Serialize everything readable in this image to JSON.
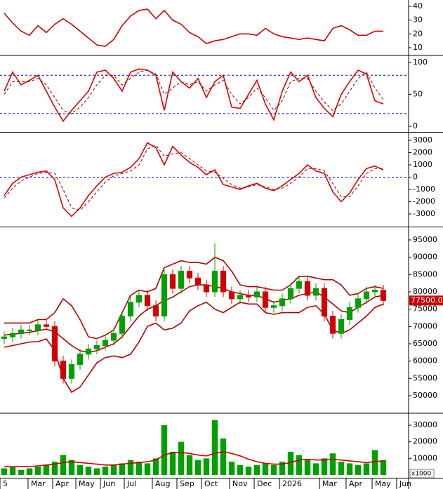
{
  "chart_data": [
    {
      "type": "line",
      "xlim": [
        -0.5,
        48
      ],
      "ylim": [
        4.9,
        44.6
      ],
      "yticks": [
        10,
        20,
        30,
        40
      ],
      "series": [
        {
          "color": "#cc0000",
          "values": [
            35,
            28,
            22,
            19,
            26,
            21,
            27,
            31,
            27,
            22,
            17,
            12,
            11,
            16,
            26,
            33,
            37,
            38,
            31,
            37,
            30,
            27,
            21,
            18,
            13,
            15,
            16,
            18,
            20,
            20,
            19,
            24,
            20,
            18,
            17,
            16,
            17,
            16,
            15,
            24,
            26,
            23,
            19,
            19,
            22,
            22
          ]
        }
      ]
    },
    {
      "type": "line",
      "xlim": [
        -0.5,
        48
      ],
      "ylim": [
        -7.7,
        110
      ],
      "yticks": [
        0,
        50,
        100
      ],
      "levels": [
        20,
        80
      ],
      "level_color": "#0000cc",
      "series": [
        {
          "color": "#dd0000",
          "values": [
            55,
            85,
            65,
            72,
            80,
            55,
            30,
            8,
            25,
            40,
            55,
            85,
            88,
            75,
            55,
            85,
            90,
            88,
            80,
            25,
            85,
            70,
            60,
            75,
            45,
            70,
            80,
            30,
            28,
            50,
            72,
            35,
            10,
            55,
            85,
            70,
            80,
            45,
            28,
            15,
            50,
            70,
            88,
            82,
            40,
            35
          ]
        },
        {
          "color": "#800000",
          "dash": true,
          "values": [
            50,
            70,
            70,
            70,
            75,
            65,
            45,
            25,
            20,
            30,
            45,
            65,
            80,
            80,
            65,
            75,
            85,
            88,
            82,
            50,
            60,
            70,
            65,
            70,
            55,
            65,
            72,
            50,
            35,
            45,
            60,
            45,
            25,
            40,
            70,
            75,
            75,
            55,
            38,
            25,
            35,
            55,
            75,
            85,
            60,
            42
          ]
        }
      ]
    },
    {
      "type": "line",
      "xlim": [
        -0.5,
        48
      ],
      "ylim": [
        -3970,
        3570
      ],
      "yticks": [
        -3000,
        -2000,
        -1000,
        0,
        1000,
        2000,
        3000
      ],
      "levels": [
        0
      ],
      "level_color": "#0000cc",
      "series": [
        {
          "color": "#dd0000",
          "values": [
            -1500,
            -500,
            0,
            200,
            400,
            500,
            -200,
            -2500,
            -3200,
            -2500,
            -1500,
            -700,
            0,
            300,
            400,
            800,
            1500,
            2800,
            2400,
            1000,
            2500,
            1800,
            1200,
            800,
            200,
            600,
            -600,
            -800,
            -1000,
            -700,
            -500,
            -900,
            -1100,
            -700,
            -200,
            300,
            1000,
            500,
            300,
            -1200,
            -2000,
            -1300,
            -200,
            700,
            900,
            600
          ]
        },
        {
          "color": "#800000",
          "dash": true,
          "values": [
            -1700,
            -900,
            -300,
            0,
            300,
            400,
            300,
            -1000,
            -2500,
            -2700,
            -2000,
            -1200,
            -400,
            100,
            300,
            500,
            1000,
            2300,
            2600,
            1700,
            1900,
            2000,
            1500,
            1000,
            500,
            400,
            -100,
            -600,
            -900,
            -800,
            -600,
            -800,
            -1000,
            -900,
            -500,
            0,
            700,
            700,
            500,
            -500,
            -1600,
            -1600,
            -700,
            300,
            700,
            700
          ]
        }
      ]
    },
    {
      "type": "candlestick",
      "xlim": [
        -0.5,
        48
      ],
      "ylim": [
        45135,
        98446
      ],
      "yticks": [
        50000,
        55000,
        60000,
        65000,
        70000,
        75000,
        80000,
        85000,
        90000,
        95000
      ],
      "up_color": "#00a000",
      "down_color": "#d00000",
      "last_label": "77500.00",
      "open": [
        66500,
        67000,
        68000,
        69000,
        69000,
        70500,
        70000,
        60000,
        55000,
        59000,
        62000,
        63500,
        64500,
        66000,
        68000,
        73000,
        77000,
        79000,
        76000,
        73000,
        85000,
        81000,
        86000,
        84000,
        82000,
        80000,
        86000,
        80000,
        78000,
        79000,
        78500,
        80000,
        75500,
        76000,
        78000,
        81000,
        83000,
        79000,
        81000,
        73000,
        68000,
        72000,
        75500,
        78000,
        80000,
        80500
      ],
      "high": [
        68500,
        69500,
        70500,
        70500,
        72000,
        72000,
        71500,
        61500,
        60500,
        63500,
        65000,
        66000,
        67500,
        69500,
        74500,
        78500,
        80500,
        80500,
        77500,
        86500,
        86500,
        87500,
        87500,
        85500,
        83500,
        94000,
        87500,
        81500,
        80500,
        80500,
        81500,
        81500,
        77500,
        79500,
        82500,
        84500,
        84500,
        82500,
        82500,
        74500,
        73500,
        77000,
        79500,
        81500,
        82000,
        82000
      ],
      "low": [
        65000,
        65500,
        66500,
        67500,
        67500,
        69000,
        58500,
        53500,
        53500,
        57500,
        60500,
        62000,
        63000,
        64500,
        66500,
        71500,
        75500,
        74500,
        71500,
        71500,
        79500,
        79500,
        82500,
        80500,
        78500,
        78500,
        78500,
        76500,
        76500,
        77000,
        77000,
        74000,
        74000,
        74500,
        76500,
        79500,
        77500,
        77500,
        71500,
        66500,
        66500,
        70500,
        74000,
        76500,
        78500,
        76000
      ],
      "close": [
        67000,
        68000,
        69000,
        69000,
        70500,
        70000,
        60000,
        55000,
        59000,
        62000,
        63500,
        64500,
        66000,
        68000,
        73000,
        77000,
        79000,
        76000,
        73000,
        85000,
        81000,
        86000,
        84000,
        82000,
        80000,
        86000,
        80000,
        78000,
        79000,
        78500,
        80000,
        75500,
        76000,
        78000,
        81000,
        83000,
        79000,
        81000,
        73000,
        68000,
        72000,
        75500,
        78000,
        80000,
        80500,
        77500
      ],
      "series": [
        {
          "color": "#b00000",
          "values": [
            71000,
            71000,
            71000,
            71000,
            72000,
            72000,
            74000,
            78000,
            76000,
            72000,
            67000,
            66500,
            67500,
            69000,
            74000,
            79000,
            80500,
            80000,
            81000,
            87000,
            88000,
            89000,
            88500,
            88500,
            88000,
            90000,
            89000,
            86000,
            82000,
            81500,
            81500,
            81000,
            80500,
            80500,
            82000,
            84500,
            84500,
            84000,
            83500,
            83500,
            82000,
            79000,
            79500,
            81000,
            81500,
            81000
          ]
        },
        {
          "color": "#b00000",
          "values": [
            67500,
            67800,
            68000,
            68300,
            68800,
            69200,
            68500,
            66500,
            64500,
            63000,
            62500,
            63000,
            64000,
            65000,
            67000,
            70000,
            73000,
            75000,
            76000,
            77500,
            78500,
            80000,
            81500,
            82000,
            82000,
            81500,
            81000,
            80000,
            79500,
            79000,
            79000,
            78000,
            77000,
            77500,
            78000,
            79000,
            79500,
            80000,
            78500,
            76500,
            74500,
            74000,
            75500,
            77000,
            78500,
            79000
          ]
        },
        {
          "color": "#b00000",
          "values": [
            64000,
            64500,
            65000,
            65500,
            65600,
            66400,
            63000,
            55000,
            51000,
            52500,
            56000,
            59500,
            61000,
            61500,
            61000,
            62000,
            65500,
            70000,
            71000,
            69000,
            69500,
            71000,
            74500,
            76000,
            77000,
            75000,
            74000,
            75500,
            77000,
            76500,
            76500,
            74000,
            73500,
            74000,
            74000,
            74000,
            75500,
            76000,
            73500,
            69000,
            68000,
            69000,
            71000,
            73000,
            75500,
            76500
          ]
        }
      ]
    },
    {
      "type": "bar",
      "xlim": [
        -0.5,
        48
      ],
      "ylim": [
        -1700,
        36800
      ],
      "yticks": [
        10000,
        20000,
        30000
      ],
      "unit_label": "x1000",
      "xticks": [
        {
          "value": -0.5,
          "label": "5"
        },
        {
          "value": 2.83,
          "label": "Mar"
        },
        {
          "value": 5.75,
          "label": "Apr"
        },
        {
          "value": 8.5,
          "label": "May"
        },
        {
          "value": 11.42,
          "label": "Jun"
        },
        {
          "value": 14.25,
          "label": "Jul"
        },
        {
          "value": 17.58,
          "label": "Aug"
        },
        {
          "value": 20.5,
          "label": "Sep"
        },
        {
          "value": 23.42,
          "label": "Oct"
        },
        {
          "value": 26.75,
          "label": "Nov"
        },
        {
          "value": 29.67,
          "label": "Dec"
        },
        {
          "value": 32.67,
          "label": "2026"
        },
        {
          "value": 37.42,
          "label": "Mar"
        },
        {
          "value": 40.58,
          "label": "Apr"
        },
        {
          "value": 43.67,
          "label": "May"
        },
        {
          "value": 46.58,
          "label": "Jun"
        }
      ],
      "series": [
        {
          "type": "bar",
          "color": "#00a000",
          "values": [
            4000,
            5000,
            3000,
            4000,
            5000,
            6000,
            8000,
            12000,
            9000,
            6000,
            5000,
            4000,
            5000,
            6000,
            7000,
            9000,
            8000,
            7000,
            10000,
            30000,
            14000,
            20000,
            12000,
            9000,
            10000,
            33000,
            22000,
            8000,
            6000,
            5000,
            6000,
            7000,
            6000,
            8000,
            14000,
            12000,
            9000,
            7000,
            10000,
            13000,
            8000,
            7000,
            6000,
            7000,
            15000,
            9000
          ]
        },
        {
          "type": "line",
          "color": "#cc0000",
          "values": [
            5000,
            5000,
            5000,
            5000,
            5500,
            6000,
            6500,
            7500,
            8000,
            7500,
            7000,
            6500,
            6000,
            6000,
            6500,
            7000,
            7500,
            8000,
            9000,
            12000,
            13500,
            13500,
            13000,
            12000,
            11500,
            13000,
            14000,
            13000,
            11500,
            9500,
            8000,
            7000,
            6500,
            6500,
            7500,
            9000,
            9500,
            9000,
            9000,
            9500,
            9000,
            8500,
            8000,
            7500,
            8000,
            8500
          ]
        }
      ]
    }
  ]
}
